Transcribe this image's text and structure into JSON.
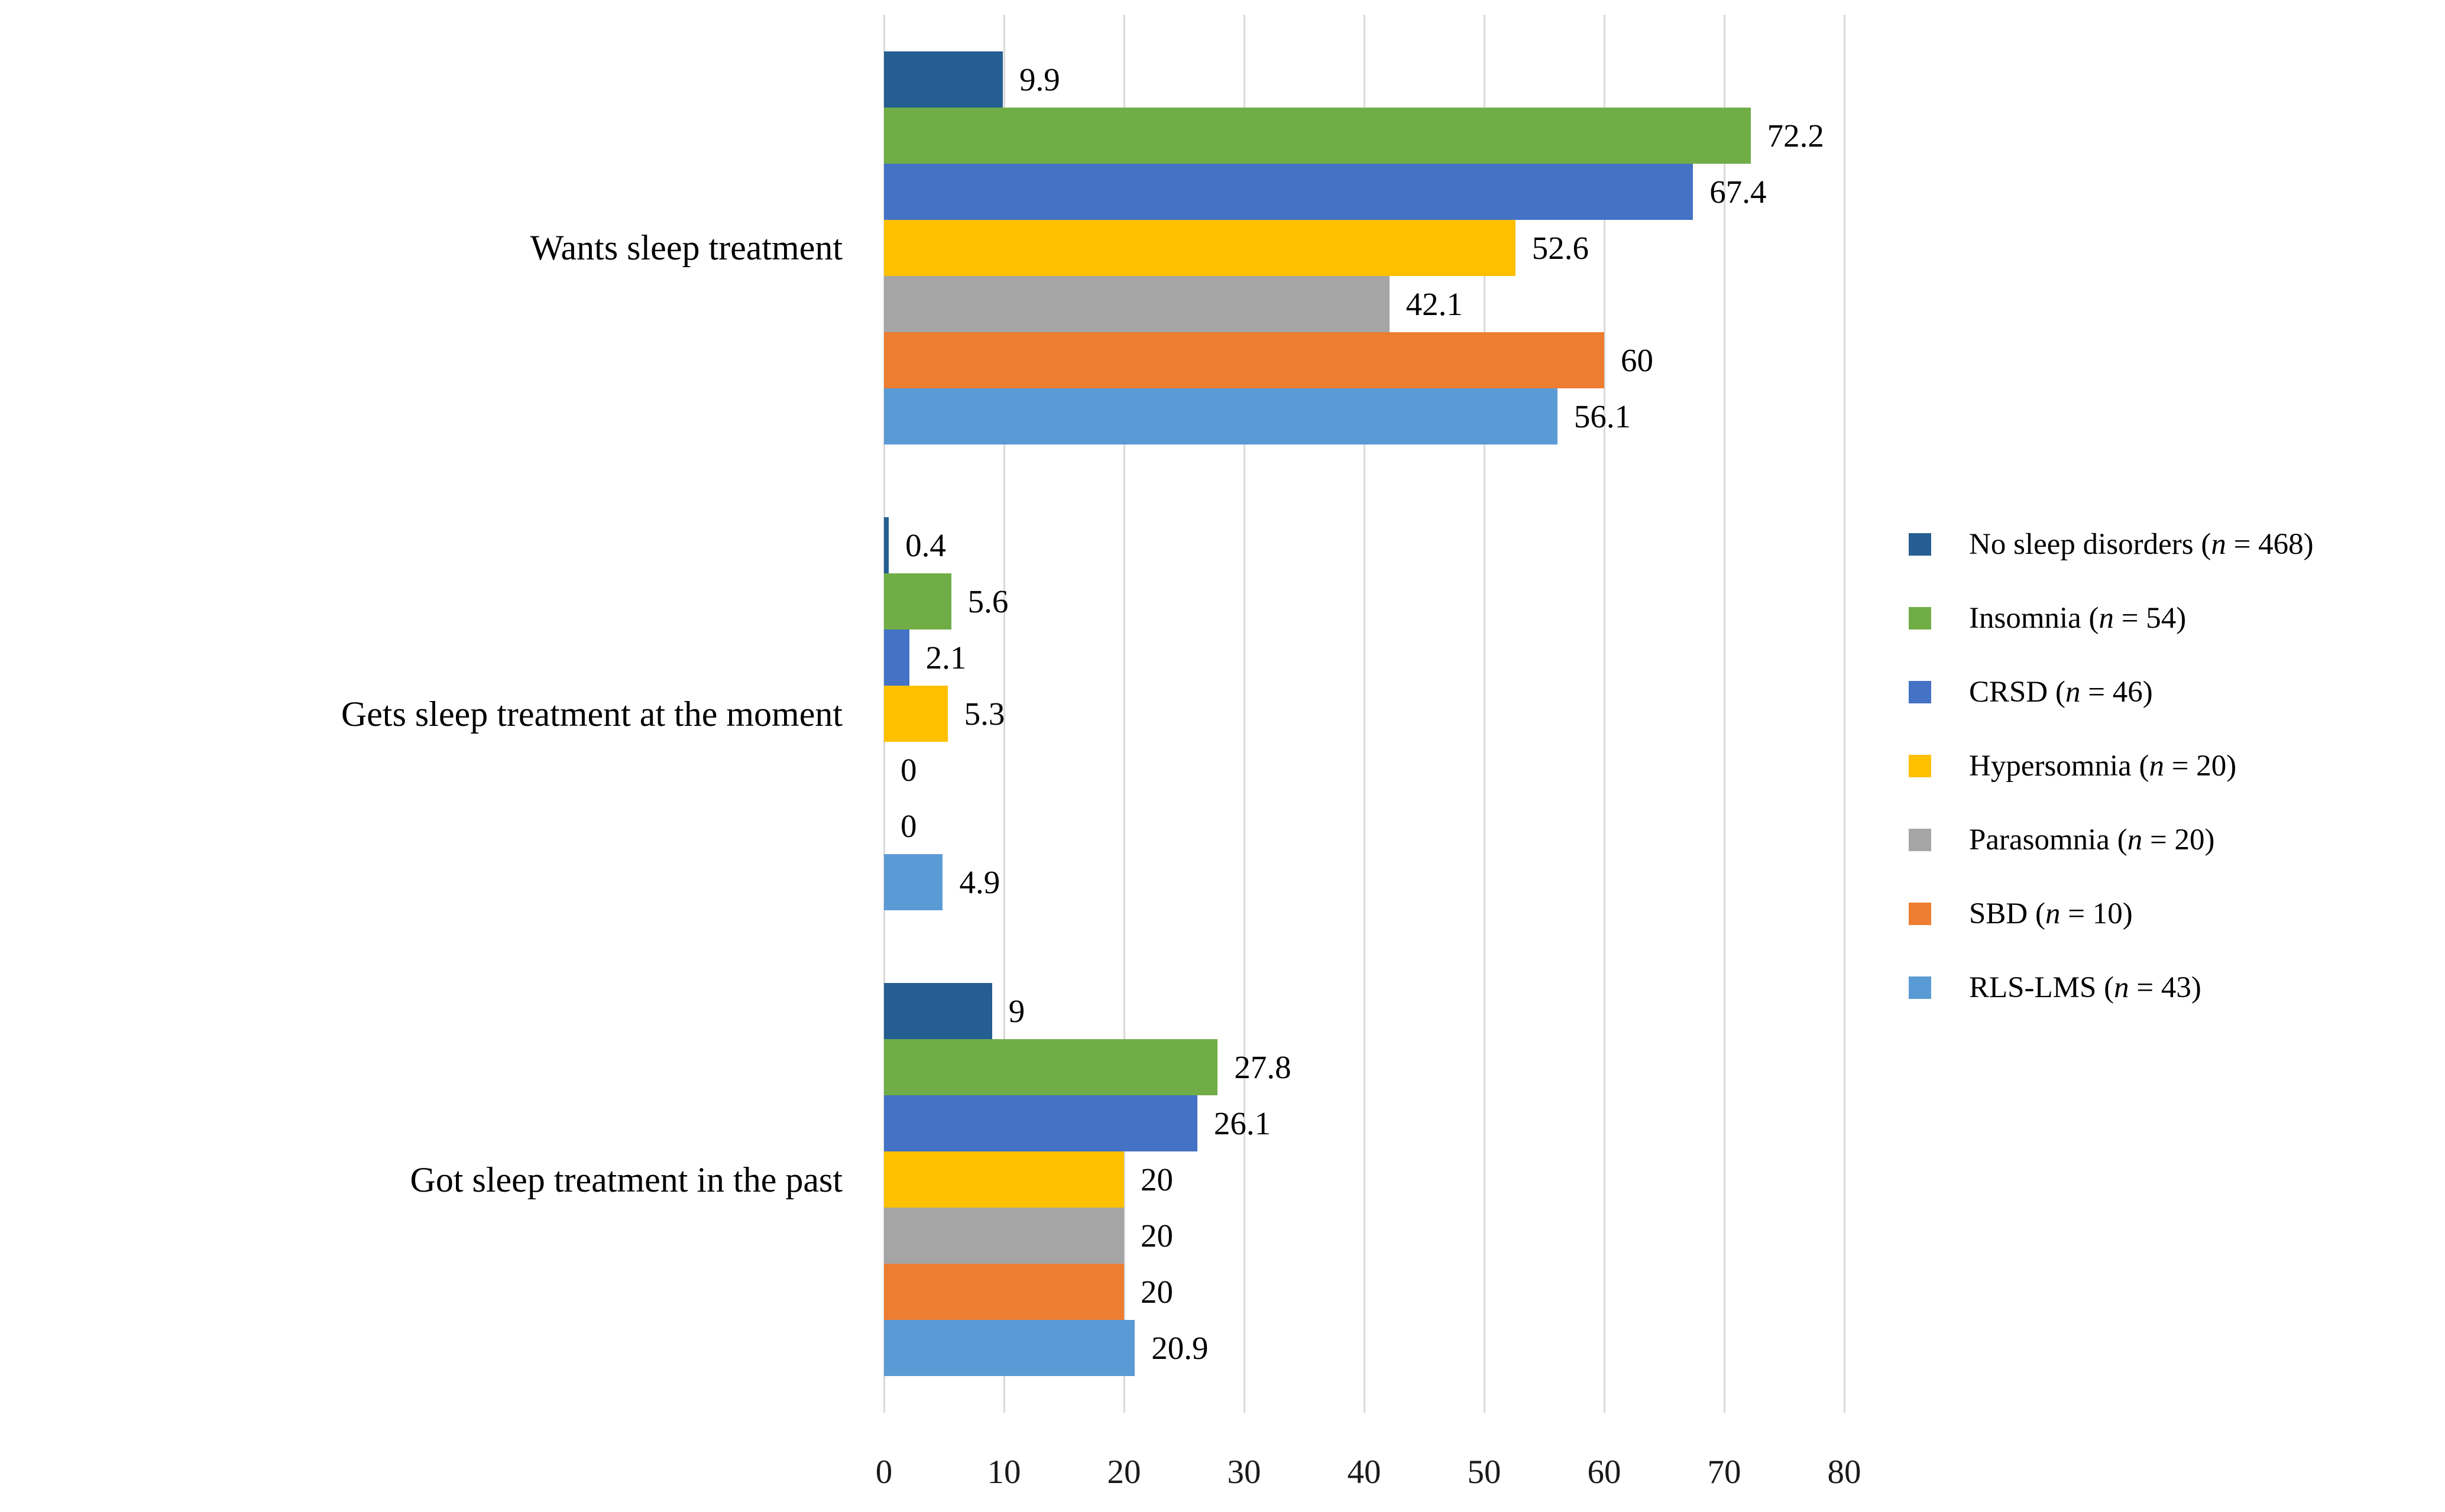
{
  "figure": {
    "background": "#ffffff",
    "gridline_color": "#d9d9d9",
    "text_color": "#000000"
  },
  "chart_data": {
    "type": "bar",
    "orientation": "horizontal",
    "title": "",
    "xlabel": "",
    "ylabel": "",
    "categories": [
      "Wants sleep treatment",
      "Gets sleep treatment at the moment",
      "Got sleep treatment in the past"
    ],
    "series": [
      {
        "name": "No sleep disorders",
        "n": "468",
        "color": "#255E91",
        "values": [
          9.9,
          0.4,
          9
        ]
      },
      {
        "name": "Insomnia",
        "n": "54",
        "color": "#70AD47",
        "values": [
          72.2,
          5.6,
          27.8
        ]
      },
      {
        "name": "CRSD",
        "n": "46",
        "color": "#4472C4",
        "values": [
          67.4,
          2.1,
          26.1
        ]
      },
      {
        "name": "Hypersomnia",
        "n": "20",
        "color": "#FFC000",
        "values": [
          52.6,
          5.3,
          20
        ]
      },
      {
        "name": "Parasomnia",
        "n": "20",
        "color": "#A5A5A5",
        "values": [
          42.1,
          0,
          20
        ]
      },
      {
        "name": "SBD",
        "n": "10",
        "color": "#ED7D31",
        "values": [
          60,
          0,
          20
        ]
      },
      {
        "name": "RLS-LMS",
        "n": "43",
        "color": "#5B9BD5",
        "values": [
          56.1,
          4.9,
          20.9
        ]
      }
    ],
    "data_labels": [
      [
        "9.9",
        "0.4",
        "9"
      ],
      [
        "72.2",
        "5.6",
        "27.8"
      ],
      [
        "67.4",
        "2.1",
        "26.1"
      ],
      [
        "52.6",
        "5.3",
        "20"
      ],
      [
        "42.1",
        "0",
        "20"
      ],
      [
        "60",
        "0",
        "20"
      ],
      [
        "56.1",
        "4.9",
        "20.9"
      ]
    ],
    "xlim": [
      0,
      80
    ],
    "xticks": [
      "0",
      "10",
      "20",
      "30",
      "40",
      "50",
      "60",
      "70",
      "80"
    ],
    "grid": {
      "vertical": true,
      "horizontal": false
    },
    "legend_position": "right",
    "legend_n_equals": " = "
  }
}
